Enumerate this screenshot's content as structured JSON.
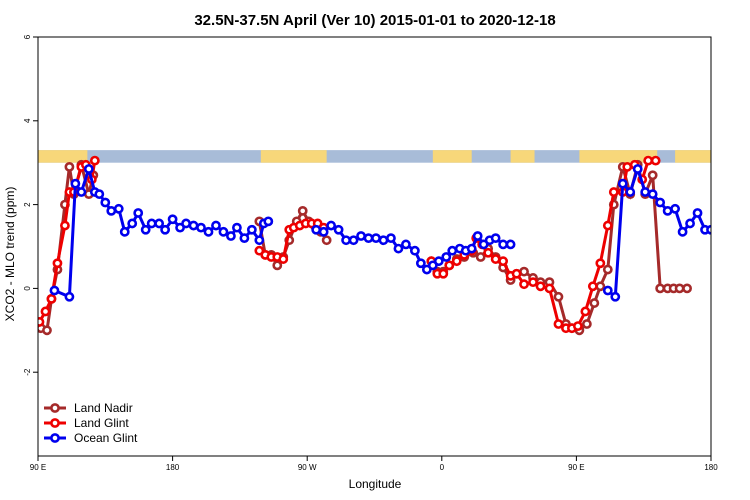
{
  "chart_data": {
    "type": "line",
    "title": "32.5N-37.5N April (Ver 10)   2015-01-01 to 2020-12-18",
    "xlabel": "Longitude",
    "ylabel": "XCO2 - MLO trend (ppm)",
    "ylim": [
      -4,
      6
    ],
    "y_ticks": [
      -2,
      0,
      2,
      4,
      6
    ],
    "y_tick_labels": [
      "-2",
      "0",
      "2",
      "4",
      "6"
    ],
    "x_ticks": [
      90,
      180,
      270,
      360,
      450,
      540
    ],
    "x_tick_labels": [
      "90 E",
      "180",
      "90 W",
      "0",
      "90 E",
      "180"
    ],
    "xlim": [
      90,
      540
    ],
    "legend_position": "bottom-left",
    "land_ocean_band": {
      "y_range": [
        3.0,
        3.3
      ],
      "land_color": "#f7d77a",
      "ocean_color": "#a8bcd8",
      "land_segments": [
        [
          90,
          123
        ],
        [
          239,
          283
        ],
        [
          354,
          380
        ],
        [
          406,
          422
        ],
        [
          452,
          504
        ],
        [
          516,
          540
        ]
      ]
    },
    "series": [
      {
        "name": "Land Nadir",
        "color": "#a52a2a",
        "x": [
          92,
          96,
          99,
          103,
          108,
          111,
          114,
          119,
          124,
          127,
          238,
          242,
          246,
          250,
          254,
          258,
          263,
          267,
          271,
          275,
          279,
          283,
          353,
          357,
          361,
          365,
          370,
          375,
          381,
          386,
          391,
          396,
          401,
          406,
          410,
          415,
          421,
          426,
          432,
          438,
          443,
          447,
          452,
          457,
          462,
          466,
          471,
          475,
          481,
          486,
          491,
          496,
          501,
          506,
          511,
          515,
          519,
          524
        ],
        "y": [
          -0.95,
          -1.0,
          -0.25,
          0.45,
          2.0,
          2.9,
          2.25,
          2.95,
          2.25,
          2.7,
          1.6,
          0.8,
          0.8,
          0.55,
          0.75,
          1.15,
          1.6,
          1.85,
          1.6,
          1.5,
          1.35,
          1.15,
          0.65,
          0.4,
          0.4,
          0.55,
          0.7,
          0.75,
          0.85,
          0.75,
          0.95,
          0.75,
          0.5,
          0.2,
          0.35,
          0.4,
          0.25,
          0.15,
          0.15,
          -0.2,
          -0.85,
          -0.95,
          -1.0,
          -0.85,
          -0.35,
          0.05,
          0.45,
          2.0,
          2.9,
          2.25,
          2.95,
          2.25,
          2.7,
          0,
          0,
          0,
          0,
          0
        ]
      },
      {
        "name": "Land Glint",
        "color": "#ee0000",
        "x": [
          91,
          95,
          99,
          103,
          108,
          111,
          114,
          119,
          122,
          126,
          128,
          238,
          242,
          246,
          250,
          254,
          258,
          261,
          265,
          269,
          273,
          277,
          281,
          353,
          357,
          361,
          365,
          370,
          375,
          380,
          383,
          387,
          391,
          396,
          401,
          406,
          410,
          415,
          421,
          426,
          432,
          438,
          443,
          447,
          451,
          456,
          461,
          466,
          471,
          475,
          481,
          484,
          489,
          494,
          498,
          503
        ],
        "y": [
          -0.8,
          -0.55,
          -0.25,
          0.6,
          1.5,
          2.3,
          2.3,
          2.9,
          2.95,
          2.6,
          3.05,
          0.9,
          0.8,
          0.75,
          0.75,
          0.7,
          1.4,
          1.45,
          1.5,
          1.55,
          1.55,
          1.55,
          1.45,
          0.65,
          0.35,
          0.35,
          0.55,
          0.65,
          0.8,
          0.9,
          1.2,
          1.05,
          0.85,
          0.7,
          0.65,
          0.3,
          0.35,
          0.1,
          0.15,
          0.05,
          0.0,
          -0.85,
          -0.95,
          -0.95,
          -0.9,
          -0.55,
          0.05,
          0.6,
          1.5,
          2.3,
          2.3,
          2.9,
          2.95,
          2.6,
          3.05,
          3.05
        ]
      },
      {
        "name": "Ocean Glint",
        "color": "#0000ee",
        "x": [
          101,
          111,
          115,
          119,
          124,
          128,
          131,
          135,
          139,
          144,
          148,
          153,
          157,
          162,
          166,
          171,
          175,
          180,
          185,
          189,
          194,
          199,
          204,
          209,
          214,
          219,
          223,
          228,
          233,
          238,
          241,
          244,
          276,
          281,
          286,
          291,
          296,
          301,
          306,
          311,
          316,
          321,
          326,
          331,
          336,
          342,
          346,
          350,
          354,
          358,
          363,
          367,
          372,
          376,
          380,
          384,
          388,
          392,
          396,
          401,
          406,
          471,
          476,
          481,
          486,
          491,
          496,
          501,
          506,
          511,
          516,
          521,
          526,
          531,
          536,
          540
        ],
        "y": [
          -0.05,
          -0.2,
          2.5,
          2.3,
          2.85,
          2.3,
          2.25,
          2.05,
          1.85,
          1.9,
          1.35,
          1.55,
          1.8,
          1.4,
          1.55,
          1.55,
          1.4,
          1.65,
          1.45,
          1.55,
          1.5,
          1.45,
          1.35,
          1.5,
          1.35,
          1.25,
          1.45,
          1.2,
          1.4,
          1.15,
          1.55,
          1.6,
          1.4,
          1.35,
          1.5,
          1.4,
          1.15,
          1.15,
          1.25,
          1.2,
          1.2,
          1.15,
          1.2,
          0.95,
          1.05,
          0.9,
          0.6,
          0.45,
          0.55,
          0.65,
          0.75,
          0.9,
          0.95,
          0.9,
          0.95,
          1.25,
          1.05,
          1.15,
          1.2,
          1.05,
          1.05,
          -0.05,
          -0.2,
          2.5,
          2.3,
          2.85,
          2.3,
          2.25,
          2.05,
          1.85,
          1.9,
          1.35,
          1.55,
          1.8,
          1.4,
          1.4
        ]
      }
    ]
  }
}
